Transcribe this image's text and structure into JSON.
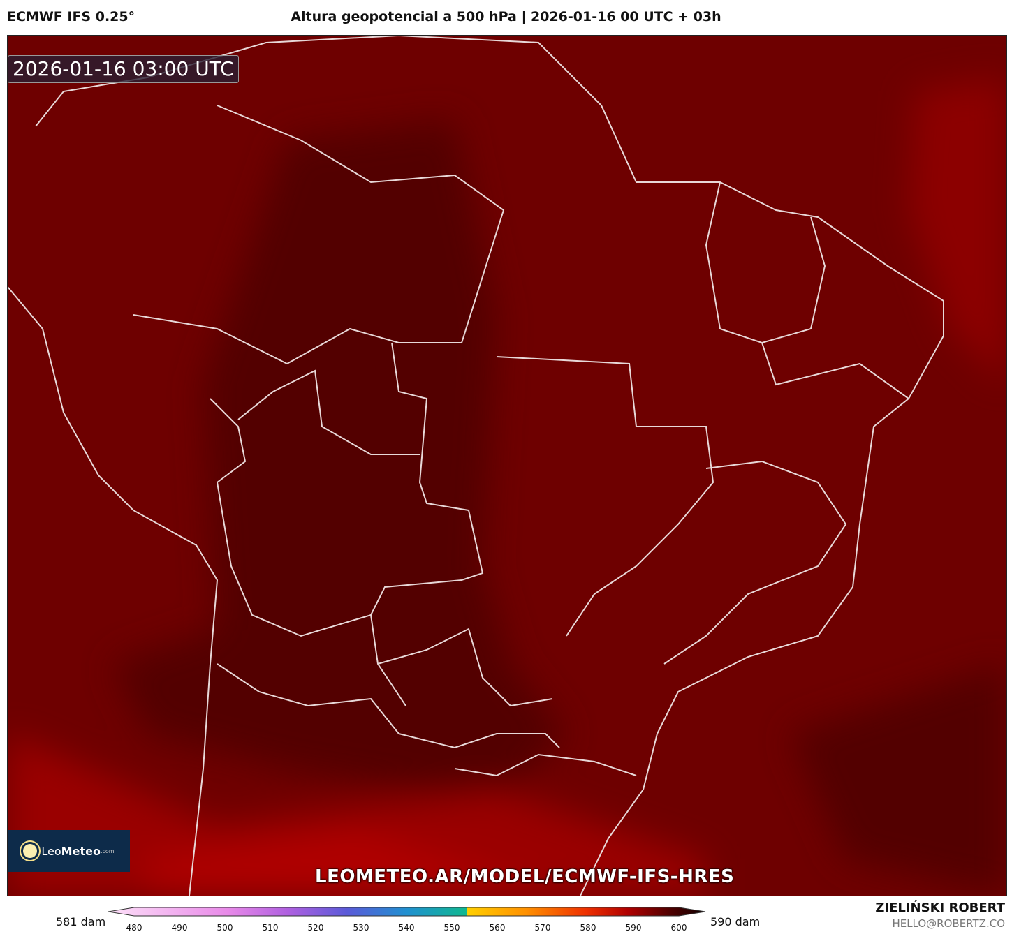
{
  "header": {
    "model": "ECMWF IFS 0.25°",
    "title": "Altura geopotencial a 500 hPa | 2026-01-16 00 UTC + 03h"
  },
  "map": {
    "valid_time": "2026-01-16 03:00 UTC",
    "watermark_url": "LEOMETEO.AR/MODEL/ECMWF-IFS-HRES",
    "field_colors": {
      "base": "#6e0000",
      "dark": "#4e0000",
      "bright": "#a00000"
    }
  },
  "logo": {
    "part1": "Leo",
    "part2": "Meteo",
    "part3": ".com"
  },
  "colorbar": {
    "min_label": "581 dam",
    "max_label": "590 dam",
    "ticks": [
      "480",
      "490",
      "500",
      "510",
      "520",
      "530",
      "540",
      "550",
      "560",
      "570",
      "580",
      "590",
      "600"
    ],
    "units": "dam"
  },
  "credits": {
    "author": "ZIELIŃSKI ROBERT",
    "email": "HELLO@ROBERTZ.CO"
  }
}
